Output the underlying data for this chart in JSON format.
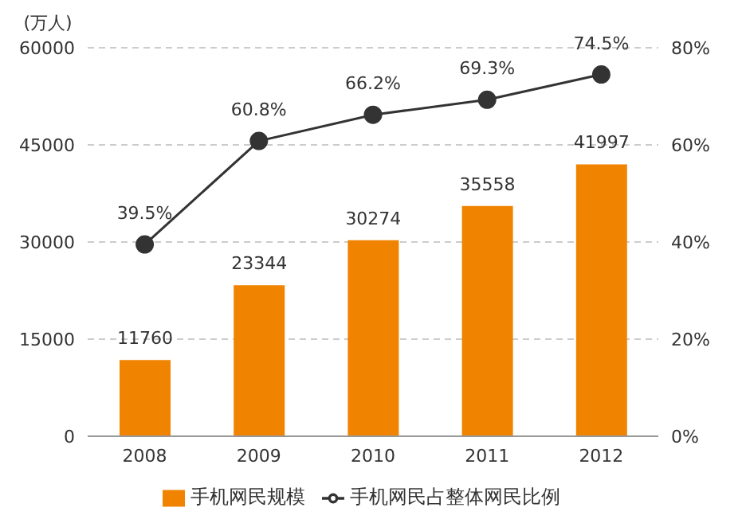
{
  "chart_data": {
    "type": "bar",
    "categories": [
      "2008",
      "2009",
      "2010",
      "2011",
      "2012"
    ],
    "series": [
      {
        "name": "手机网民规模",
        "color": "#f08300",
        "values": [
          11760,
          23344,
          30274,
          35558,
          41997
        ],
        "value_labels": [
          "11760",
          "23344",
          "30274",
          "35558",
          "41997"
        ]
      },
      {
        "name": "手机网民占整体网民比例",
        "type": "line",
        "axis": "y2",
        "color": "#333333",
        "values": [
          39.5,
          60.8,
          66.2,
          69.3,
          74.5
        ],
        "value_labels": [
          "39.5%",
          "60.8%",
          "66.2%",
          "69.3%",
          "74.5%"
        ]
      }
    ],
    "ylabel": "(万人)",
    "ylim": [
      0,
      60000
    ],
    "yticks": [
      0,
      15000,
      30000,
      45000,
      60000
    ],
    "y2lim": [
      0,
      80
    ],
    "y2ticks": [
      {
        "value": 0,
        "label": "0%"
      },
      {
        "value": 20,
        "label": "20%"
      },
      {
        "value": 40,
        "label": "40%"
      },
      {
        "value": 60,
        "label": "60%"
      },
      {
        "value": 80,
        "label": "80%"
      }
    ],
    "grid": "y",
    "legend": "bottom",
    "marker": "circle",
    "line_style": "solid"
  }
}
